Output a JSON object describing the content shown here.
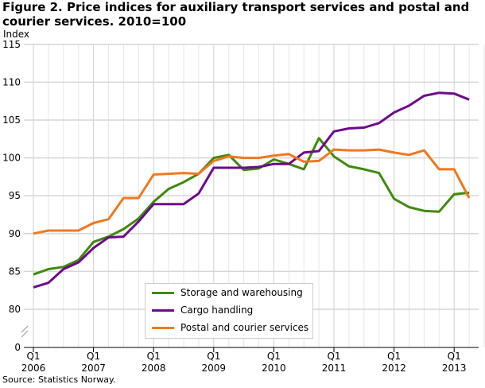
{
  "chart_data": {
    "type": "line",
    "title": "Figure 2. Price indices for auxiliary transport services and postal and courier services. 2010=100",
    "ylabel": "Index",
    "ylim": [
      0,
      115
    ],
    "y_axis_break": [
      0,
      80
    ],
    "yticks": [
      0,
      80,
      85,
      90,
      95,
      100,
      105,
      110,
      115
    ],
    "x": [
      "2006Q1",
      "2006Q2",
      "2006Q3",
      "2006Q4",
      "2007Q1",
      "2007Q2",
      "2007Q3",
      "2007Q4",
      "2008Q1",
      "2008Q2",
      "2008Q3",
      "2008Q4",
      "2009Q1",
      "2009Q2",
      "2009Q3",
      "2009Q4",
      "2010Q1",
      "2010Q2",
      "2010Q3",
      "2010Q4",
      "2011Q1",
      "2011Q2",
      "2011Q3",
      "2011Q4",
      "2012Q1",
      "2012Q2",
      "2012Q3",
      "2012Q4",
      "2013Q1",
      "2013Q2"
    ],
    "xtick_labels": [
      [
        "Q1",
        "2006"
      ],
      [
        "Q1",
        "2007"
      ],
      [
        "Q1",
        "2008"
      ],
      [
        "Q1",
        "2009"
      ],
      [
        "Q1",
        "2010"
      ],
      [
        "Q1",
        "2011"
      ],
      [
        "Q1",
        "2012"
      ],
      [
        "Q1",
        "2013"
      ]
    ],
    "grid": true,
    "legend_placement": "bottom-center",
    "series": [
      {
        "name": "Storage and warehousing",
        "color": "#3f8a0c",
        "values": [
          84.6,
          85.3,
          85.6,
          86.5,
          88.9,
          89.6,
          90.6,
          92.0,
          94.2,
          95.9,
          96.8,
          97.9,
          100.0,
          100.4,
          98.4,
          98.6,
          99.8,
          99.2,
          98.5,
          102.6,
          100.2,
          98.9,
          98.5,
          98.0,
          94.6,
          93.5,
          93.0,
          92.9,
          95.2,
          95.4
        ]
      },
      {
        "name": "Cargo handling",
        "color": "#6e0a8c",
        "values": [
          82.9,
          83.5,
          85.3,
          86.2,
          88.1,
          89.5,
          89.6,
          91.6,
          93.9,
          93.9,
          93.9,
          95.3,
          98.7,
          98.7,
          98.7,
          98.8,
          99.2,
          99.2,
          100.7,
          100.9,
          103.5,
          103.9,
          104.0,
          104.6,
          106.0,
          106.9,
          108.2,
          108.6,
          108.5,
          107.7
        ]
      },
      {
        "name": "Postal and courier services",
        "color": "#f07820",
        "values": [
          90.0,
          90.4,
          90.4,
          90.4,
          91.4,
          91.9,
          94.7,
          94.7,
          97.8,
          97.9,
          98.0,
          97.9,
          99.6,
          100.2,
          100.0,
          100.0,
          100.3,
          100.5,
          99.5,
          99.6,
          101.1,
          101.0,
          101.0,
          101.1,
          100.7,
          100.4,
          101.0,
          98.5,
          98.5,
          94.7
        ]
      }
    ]
  },
  "source": "Source: Statistics Norway."
}
